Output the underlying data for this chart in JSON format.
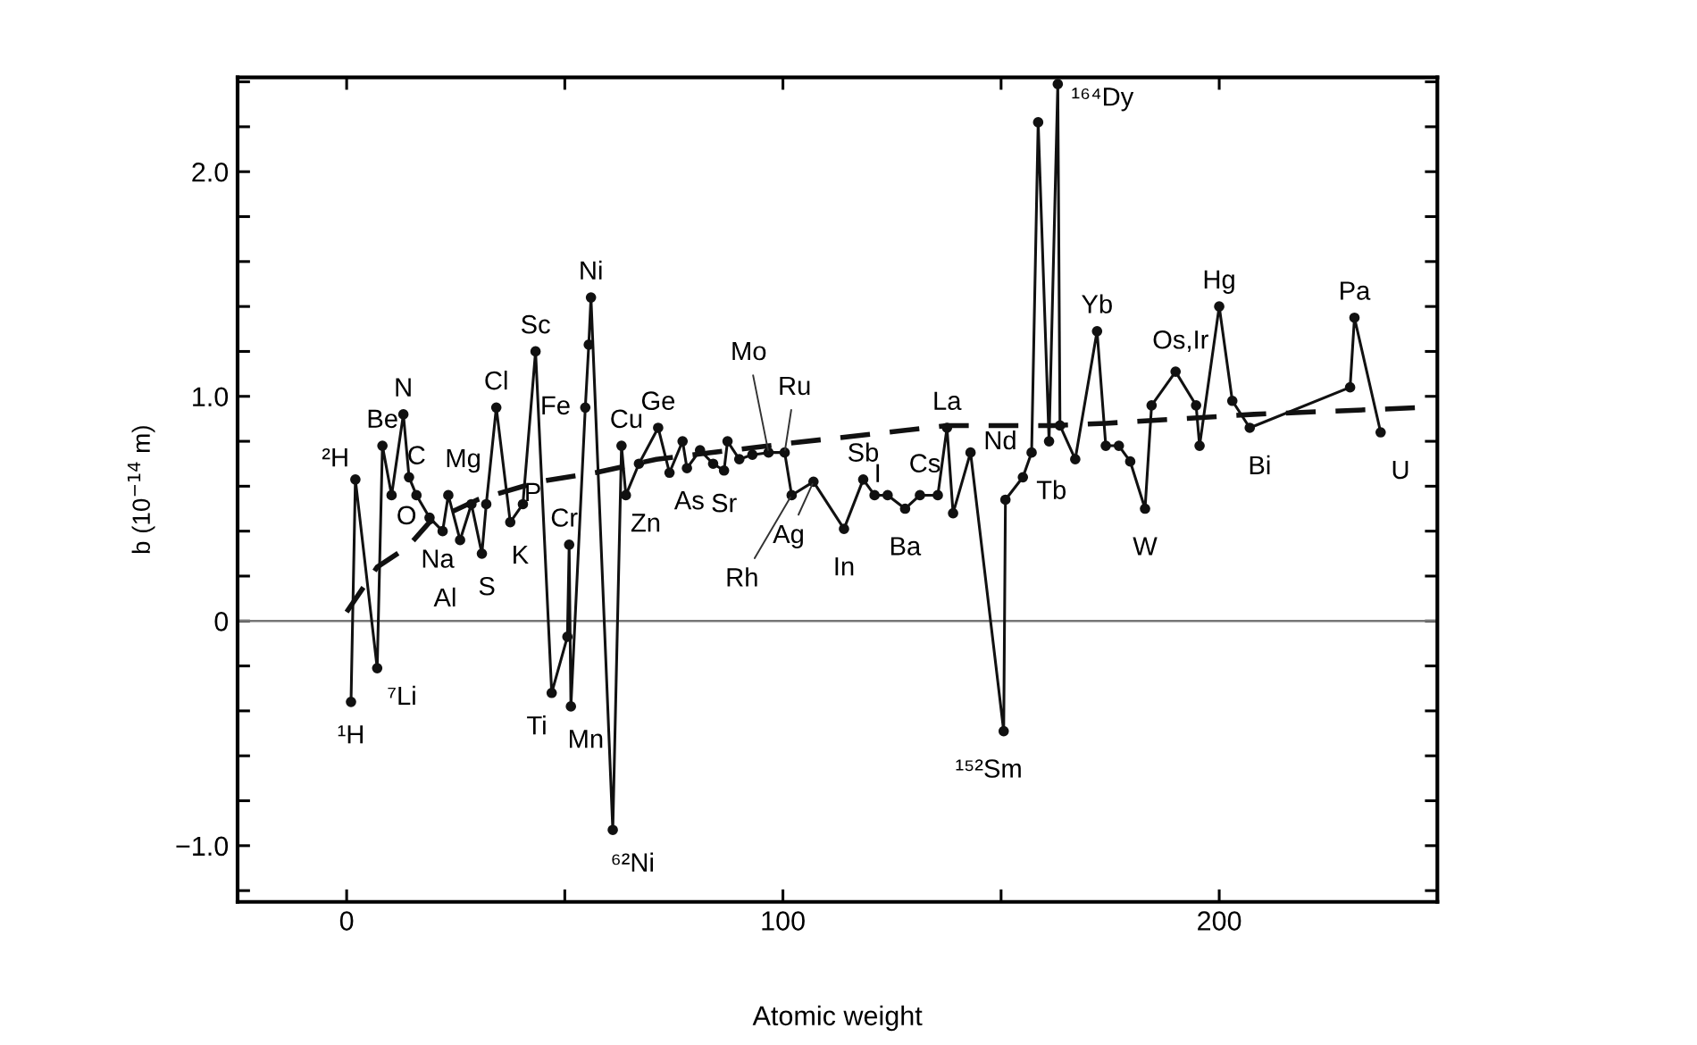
{
  "chart_data": {
    "type": "line",
    "xlabel": "Atomic weight",
    "ylabel": "b (10$^{−14}$ m)",
    "series": [
      {
        "color": "#111111",
        "marker": "circle",
        "line_style": "solid",
        "x": [
          1,
          2,
          7,
          8.2,
          10.3,
          13,
          14.3,
          16,
          19,
          22,
          23.3,
          26,
          28.6,
          31,
          32,
          34.3,
          37.5,
          40.4,
          43.3,
          47,
          50.6,
          51,
          51.4,
          54.7,
          55.5,
          56,
          61,
          63,
          64,
          67,
          71.4,
          74,
          77,
          78,
          81,
          84,
          86.5,
          87.3,
          90,
          93,
          96.7,
          100.4,
          102,
          107,
          114,
          118.4,
          121,
          124,
          128,
          131.4,
          135.5,
          137.6,
          139,
          143,
          150.6,
          151,
          155,
          157,
          158.5,
          161,
          163,
          163.5,
          167,
          172,
          174,
          177,
          179.6,
          183,
          184.5,
          190,
          194.7,
          195.5,
          200,
          203,
          207,
          230,
          231,
          237
        ],
        "values": [
          -0.36,
          0.63,
          -0.21,
          0.78,
          0.56,
          0.92,
          0.64,
          0.56,
          0.46,
          0.4,
          0.56,
          0.36,
          0.52,
          0.3,
          0.52,
          0.95,
          0.44,
          0.52,
          1.2,
          -0.32,
          -0.07,
          0.34,
          -0.38,
          0.95,
          1.23,
          1.44,
          -0.93,
          0.78,
          0.56,
          0.7,
          0.86,
          0.66,
          0.8,
          0.68,
          0.76,
          0.7,
          0.67,
          0.8,
          0.72,
          0.74,
          0.75,
          0.75,
          0.56,
          0.62,
          0.41,
          0.63,
          0.56,
          0.56,
          0.5,
          0.56,
          0.56,
          0.86,
          0.48,
          0.75,
          -0.49,
          0.54,
          0.64,
          0.75,
          2.22,
          0.8,
          2.39,
          0.87,
          0.72,
          1.29,
          0.78,
          0.78,
          0.71,
          0.5,
          0.96,
          1.11,
          0.96,
          0.78,
          1.4,
          0.98,
          0.86,
          1.04,
          1.35,
          0.84
        ]
      },
      {
        "color": "#111111",
        "marker": "none",
        "line_style": "dashed",
        "x": [
          0,
          7,
          14,
          19,
          30,
          44,
          57,
          71,
          101,
          137.6,
          162,
          174,
          208,
          246
        ],
        "values": [
          0.04,
          0.24,
          0.33,
          0.44,
          0.54,
          0.62,
          0.66,
          0.72,
          0.79,
          0.87,
          0.87,
          0.88,
          0.92,
          0.95
        ]
      }
    ],
    "xlim": [
      -25,
      250
    ],
    "xticks": [
      0,
      {
        "value": 50,
        "label": null
      },
      100,
      {
        "value": 150,
        "label": null
      },
      200
    ],
    "ylim": [
      -1.25,
      2.42
    ],
    "yticks": [
      {
        "value": -1.2,
        "label": null
      },
      {
        "value": -1.0,
        "label": "−1.0"
      },
      {
        "value": -0.8,
        "label": null
      },
      {
        "value": -0.6,
        "label": null
      },
      {
        "value": -0.4,
        "label": null
      },
      {
        "value": -0.2,
        "label": null
      },
      0,
      {
        "value": 0.2,
        "label": null
      },
      {
        "value": 0.4,
        "label": null
      },
      {
        "value": 0.6,
        "label": null
      },
      {
        "value": 0.8,
        "label": null
      },
      {
        "value": 1.0,
        "label": "1.0"
      },
      {
        "value": 1.2,
        "label": null
      },
      {
        "value": 1.4,
        "label": null
      },
      {
        "value": 1.6,
        "label": null
      },
      {
        "value": 1.8,
        "label": null
      },
      {
        "value": 2.0,
        "label": "2.0"
      },
      {
        "value": 2.2,
        "label": null
      },
      {
        "value": 2.4,
        "label": null
      }
    ],
    "ref_lines": [
      {
        "axis": "y",
        "value": 0,
        "color": "#777777",
        "line_style": "solid"
      }
    ],
    "grid": false,
    "legend": false,
    "annotations": [
      {
        "text": "¹H",
        "x": 1,
        "y": -0.36
      },
      {
        "text": "²H",
        "x": 2,
        "y": 0.63
      },
      {
        "text": "⁷Li",
        "x": 7,
        "y": -0.21
      },
      {
        "text": "Be",
        "x": 8.2,
        "y": 0.78
      },
      {
        "text": "N",
        "x": 13,
        "y": 0.92
      },
      {
        "text": "C",
        "x": 14.3,
        "y": 0.64
      },
      {
        "text": "O",
        "x": 16,
        "y": 0.56
      },
      {
        "text": "Na",
        "x": 22,
        "y": 0.4
      },
      {
        "text": "Mg",
        "x": 23.3,
        "y": 0.56
      },
      {
        "text": "Al",
        "x": 26,
        "y": 0.36
      },
      {
        "text": "S",
        "x": 31,
        "y": 0.3
      },
      {
        "text": "Cl",
        "x": 34.3,
        "y": 0.95
      },
      {
        "text": "K",
        "x": 37.5,
        "y": 0.44
      },
      {
        "text": "P",
        "x": 40.4,
        "y": 0.52
      },
      {
        "text": "Sc",
        "x": 43.3,
        "y": 1.2
      },
      {
        "text": "Fe",
        "x": 54.7,
        "y": 0.95
      },
      {
        "text": "Ni",
        "x": 56,
        "y": 1.44
      },
      {
        "text": "Ti",
        "x": 47,
        "y": -0.32
      },
      {
        "text": "Cr",
        "x": 51,
        "y": 0.34
      },
      {
        "text": "Mn",
        "x": 51.4,
        "y": -0.38
      },
      {
        "text": "⁶²Ni",
        "x": 61,
        "y": -0.93
      },
      {
        "text": "Cu",
        "x": 63,
        "y": 0.78
      },
      {
        "text": "Zn",
        "x": 64,
        "y": 0.56
      },
      {
        "text": "Ge",
        "x": 71.4,
        "y": 0.86
      },
      {
        "text": "As",
        "x": 74,
        "y": 0.66
      },
      {
        "text": "Sr",
        "x": 86.5,
        "y": 0.67
      },
      {
        "text": "Mo",
        "x": 96.7,
        "y": 0.75
      },
      {
        "text": "Ru",
        "x": 100.4,
        "y": 0.75
      },
      {
        "text": "Rh",
        "x": 102,
        "y": 0.56
      },
      {
        "text": "Ag",
        "x": 107,
        "y": 0.62
      },
      {
        "text": "In",
        "x": 114,
        "y": 0.41
      },
      {
        "text": "Sb",
        "x": 118.4,
        "y": 0.63
      },
      {
        "text": "I",
        "x": 124,
        "y": 0.56
      },
      {
        "text": "Cs",
        "x": 131.4,
        "y": 0.56
      },
      {
        "text": "Ba",
        "x": 128,
        "y": 0.5
      },
      {
        "text": "La",
        "x": 137.6,
        "y": 0.86
      },
      {
        "text": "Nd",
        "x": 143,
        "y": 0.75
      },
      {
        "text": "¹⁵²Sm",
        "x": 150.6,
        "y": -0.49
      },
      {
        "text": "Tb",
        "x": 157,
        "y": 0.75
      },
      {
        "text": "¹⁶⁴Dy",
        "x": 163,
        "y": 2.39
      },
      {
        "text": "Yb",
        "x": 172,
        "y": 1.29
      },
      {
        "text": "W",
        "x": 183,
        "y": 0.5
      },
      {
        "text": "Os,Ir",
        "x": 190,
        "y": 1.11
      },
      {
        "text": "Hg",
        "x": 200,
        "y": 1.4
      },
      {
        "text": "Bi",
        "x": 207,
        "y": 0.86
      },
      {
        "text": "Pa",
        "x": 231,
        "y": 1.35
      },
      {
        "text": "U",
        "x": 237,
        "y": 0.84
      }
    ]
  }
}
